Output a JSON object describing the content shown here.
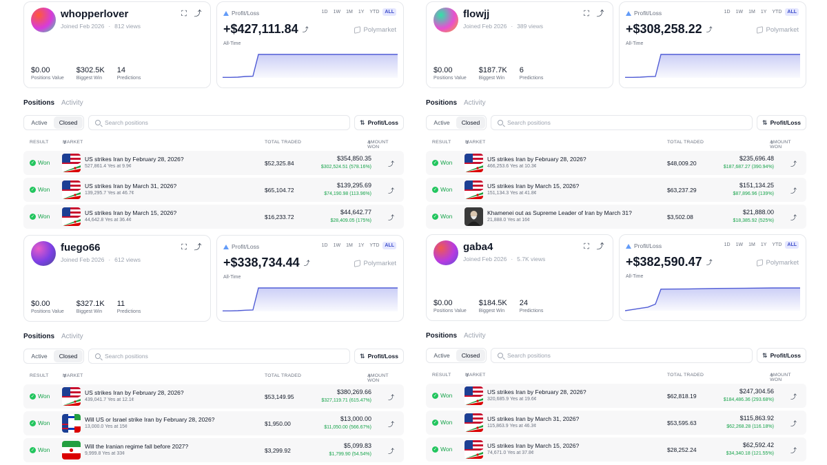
{
  "range_labels": [
    "1D",
    "1W",
    "1M",
    "1Y",
    "YTD",
    "ALL"
  ],
  "active_range": "ALL",
  "labels": {
    "profit_loss": "Profit/Loss",
    "all_time": "All-Time",
    "polymarket": "Polymarket",
    "positions_value": "Positions Value",
    "biggest_win": "Biggest Win",
    "predictions": "Predictions",
    "positions_tab": "Positions",
    "activity_tab": "Activity",
    "active": "Active",
    "closed": "Closed",
    "search_placeholder": "Search positions",
    "sort_button": "Profit/Loss",
    "col_result": "RESULT",
    "col_market": "MARKET",
    "col_total": "TOTAL TRADED",
    "col_amount": "AMOUNT WON",
    "won": "Won"
  },
  "colors": {
    "accent": "#4f5bd5",
    "won": "#16a34a"
  },
  "profiles": [
    {
      "username": "whopperlover",
      "joined": "Joined Feb 2026",
      "views": "812 views",
      "pnl": "+$427,111.84",
      "positions_value": "$0.00",
      "biggest_win": "$302.5K",
      "predictions": "14",
      "avatar_colors": [
        "#ff5a36",
        "#d63bdc",
        "#3be0a0"
      ],
      "pnl_curve": [
        0.02,
        0.02,
        0.03,
        0.06,
        0.07,
        1.0,
        1.0,
        1.0,
        1.0,
        1.0,
        1.0
      ],
      "positions": [
        {
          "title": "US strikes Iran by February 28, 2026?",
          "sub": "527,861.4 Yes at 9.9¢",
          "total": "$52,325.84",
          "amount": "$354,850.35",
          "gain": "$302,524.51 (578.16%)",
          "flag": "us-iran"
        },
        {
          "title": "US strikes Iran by March 31, 2026?",
          "sub": "139,295.7 Yes at 46.7¢",
          "total": "$65,104.72",
          "amount": "$139,295.69",
          "gain": "$74,190.98 (113.96%)",
          "flag": "us-iran"
        },
        {
          "title": "US strikes Iran by March 15, 2026?",
          "sub": "44,642.8 Yes at 36.4¢",
          "total": "$16,233.72",
          "amount": "$44,642.77",
          "gain": "$28,409.05 (175%)",
          "flag": "us-iran"
        }
      ]
    },
    {
      "username": "flowjj",
      "joined": "Joined Feb 2026",
      "views": "389 views",
      "pnl": "+$308,258.22",
      "positions_value": "$0.00",
      "biggest_win": "$187.7K",
      "predictions": "6",
      "avatar_colors": [
        "#2fe3a7",
        "#e84fd1",
        "#f5a623"
      ],
      "pnl_curve": [
        0.02,
        0.02,
        0.03,
        0.05,
        0.06,
        1.0,
        1.0,
        1.0,
        1.0,
        1.0,
        1.0
      ],
      "positions": [
        {
          "title": "US strikes Iran by February 28, 2026?",
          "sub": "466,253.6 Yes at 10.3¢",
          "total": "$48,009.20",
          "amount": "$235,696.48",
          "gain": "$187,687.27 (390.94%)",
          "flag": "us-iran"
        },
        {
          "title": "US strikes Iran by March 15, 2026?",
          "sub": "151,134.3 Yes at 41.8¢",
          "total": "$63,237.29",
          "amount": "$151,134.25",
          "gain": "$87,896.96 (139%)",
          "flag": "us-iran"
        },
        {
          "title": "Khamenei out as Supreme Leader of Iran by March 31?",
          "sub": "21,888.0 Yes at 16¢",
          "total": "$3,502.08",
          "amount": "$21,888.00",
          "gain": "$18,385.92 (525%)",
          "flag": "portrait"
        }
      ]
    },
    {
      "username": "fuego66",
      "joined": "Joined Feb 2026",
      "views": "612 views",
      "pnl": "+$338,734.44",
      "positions_value": "$0.00",
      "biggest_win": "$327.1K",
      "predictions": "11",
      "avatar_colors": [
        "#e85cc8",
        "#7b3fe4",
        "#4b4b8f"
      ],
      "pnl_curve": [
        0.02,
        0.02,
        0.03,
        0.05,
        0.06,
        1.0,
        1.0,
        1.0,
        1.0,
        1.0,
        1.0
      ],
      "positions": [
        {
          "title": "US strikes Iran by February 28, 2026?",
          "sub": "439,041.7 Yes at 12.1¢",
          "total": "$53,149.95",
          "amount": "$380,269.66",
          "gain": "$327,119.71 (615.47%)",
          "flag": "us-iran"
        },
        {
          "title": "Will US or Israel strike Iran by February 28, 2026?",
          "sub": "13,000.0 Yes at 15¢",
          "total": "$1,950.00",
          "amount": "$13,000.00",
          "gain": "$11,050.00 (566.67%)",
          "flag": "us-israel-iran"
        },
        {
          "title": "Will the Iranian regime fall before 2027?",
          "sub": "9,999.8 Yes at 33¢",
          "total": "$3,299.92",
          "amount": "$5,099.83",
          "gain": "$1,799.90 (54.54%)",
          "flag": "iran"
        }
      ]
    },
    {
      "username": "gaba4",
      "joined": "Joined Feb 2026",
      "views": "5.7K views",
      "pnl": "+$382,590.47",
      "positions_value": "$0.00",
      "biggest_win": "$184.5K",
      "predictions": "24",
      "avatar_colors": [
        "#f05a4f",
        "#b83be0",
        "#5b4fd6"
      ],
      "pnl_curve": [
        0.0,
        0.05,
        0.1,
        0.15,
        0.28,
        0.92,
        0.93,
        0.95,
        0.96,
        0.97,
        0.97
      ],
      "positions": [
        {
          "title": "US strikes Iran by February 28, 2026?",
          "sub": "320,685.9 Yes at 19.6¢",
          "total": "$62,818.19",
          "amount": "$247,304.56",
          "gain": "$184,486.36 (293.68%)",
          "flag": "us-iran"
        },
        {
          "title": "US strikes Iran by March 31, 2026?",
          "sub": "115,863.9 Yes at 46.3¢",
          "total": "$53,595.63",
          "amount": "$115,863.92",
          "gain": "$62,268.28 (116.18%)",
          "flag": "us-iran"
        },
        {
          "title": "US strikes Iran by March 15, 2026?",
          "sub": "74,671.0 Yes at 37.8¢",
          "total": "$28,252.24",
          "amount": "$62,592.42",
          "gain": "$34,340.18 (121.55%)",
          "flag": "us-iran"
        }
      ]
    }
  ]
}
